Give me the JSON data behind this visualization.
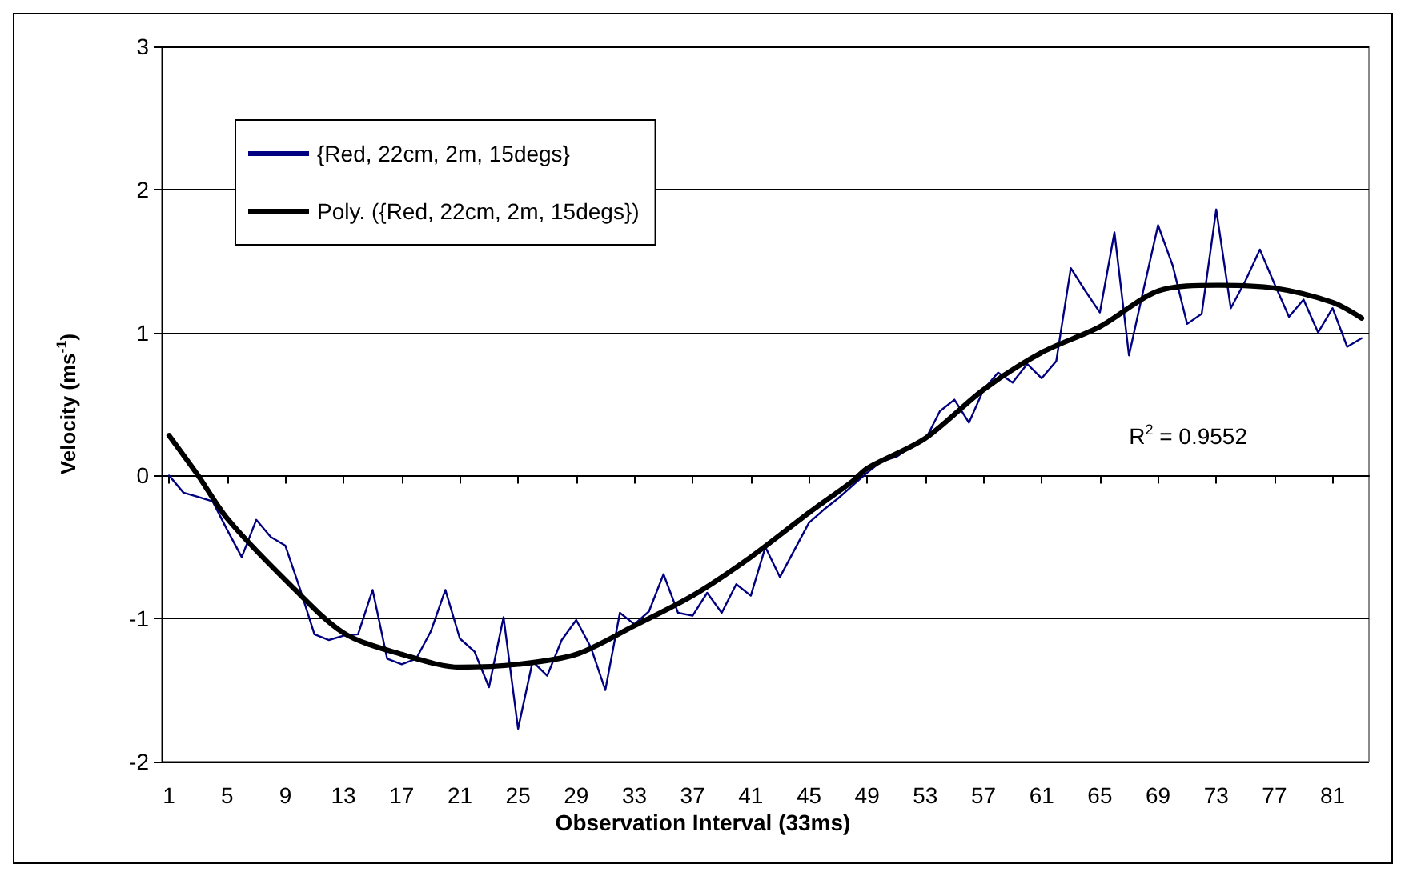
{
  "chart_data": {
    "type": "line",
    "xlabel": "Observation Interval (33ms)",
    "ylabel": "Velocity (ms$^{-1}$)",
    "xlim": [
      0.5,
      83.5
    ],
    "xticks": [
      1,
      5,
      9,
      13,
      17,
      21,
      25,
      29,
      33,
      37,
      41,
      45,
      49,
      53,
      57,
      61,
      65,
      69,
      73,
      77,
      81
    ],
    "ylim": [
      -2,
      3
    ],
    "yticks": [
      -2,
      -1,
      0,
      1,
      2,
      3
    ],
    "grid": "y",
    "legend": "top left",
    "marker": "none",
    "annotations": [
      "R$^{2}$ = 0.9552"
    ],
    "series": [
      {
        "name": "{Red, 22cm, 2m, 15degs}",
        "color": "#000080",
        "x": [
          1,
          2,
          3,
          4,
          5,
          6,
          7,
          8,
          9,
          10,
          11,
          12,
          13,
          14,
          15,
          16,
          17,
          18,
          19,
          20,
          21,
          22,
          23,
          24,
          25,
          26,
          27,
          28,
          29,
          30,
          31,
          32,
          33,
          34,
          35,
          36,
          37,
          38,
          39,
          40,
          41,
          42,
          43,
          44,
          45,
          46,
          47,
          48,
          49,
          50,
          51,
          52,
          53,
          54,
          55,
          56,
          57,
          58,
          59,
          60,
          61,
          62,
          63,
          64,
          65,
          66,
          67,
          68,
          69,
          70,
          71,
          72,
          73,
          74,
          75,
          76,
          77,
          78,
          79,
          80,
          81,
          82,
          83
        ],
        "values": [
          0,
          -0.12,
          -0.15,
          -0.18,
          -0.38,
          -0.57,
          -0.31,
          -0.43,
          -0.49,
          -0.79,
          -1.11,
          -1.15,
          -1.12,
          -1.11,
          -0.8,
          -1.28,
          -1.32,
          -1.28,
          -1.09,
          -0.8,
          -1.14,
          -1.23,
          -1.48,
          -0.99,
          -1.77,
          -1.3,
          -1.4,
          -1.15,
          -1.01,
          -1.2,
          -1.5,
          -0.96,
          -1.04,
          -0.95,
          -0.69,
          -0.96,
          -0.98,
          -0.82,
          -0.96,
          -0.76,
          -0.84,
          -0.5,
          -0.71,
          -0.52,
          -0.33,
          -0.24,
          -0.16,
          -0.07,
          0.02,
          0.1,
          0.13,
          0.2,
          0.25,
          0.45,
          0.53,
          0.37,
          0.6,
          0.72,
          0.65,
          0.78,
          0.68,
          0.8,
          1.45,
          1.29,
          1.14,
          1.7,
          0.84,
          1.3,
          1.75,
          1.47,
          1.06,
          1.13,
          1.86,
          1.17,
          1.36,
          1.58,
          1.34,
          1.11,
          1.23,
          1,
          1.17,
          0.9,
          0.96
        ]
      },
      {
        "name": "Poly. ({Red, 22cm, 2m, 15degs})",
        "color": "#000000",
        "type": "line",
        "x": [
          1,
          3,
          5,
          9,
          13,
          17,
          21,
          25,
          29,
          33,
          37,
          41,
          45,
          48,
          49,
          53,
          57,
          61,
          65,
          69,
          73,
          77,
          81,
          83
        ],
        "values": [
          0.28,
          0,
          -0.3,
          -0.73,
          -1.1,
          -1.25,
          -1.34,
          -1.32,
          -1.25,
          -1.05,
          -0.84,
          -0.57,
          -0.26,
          -0.04,
          0.05,
          0.26,
          0.6,
          0.86,
          1.04,
          1.29,
          1.33,
          1.31,
          1.21,
          1.1
        ]
      }
    ]
  }
}
